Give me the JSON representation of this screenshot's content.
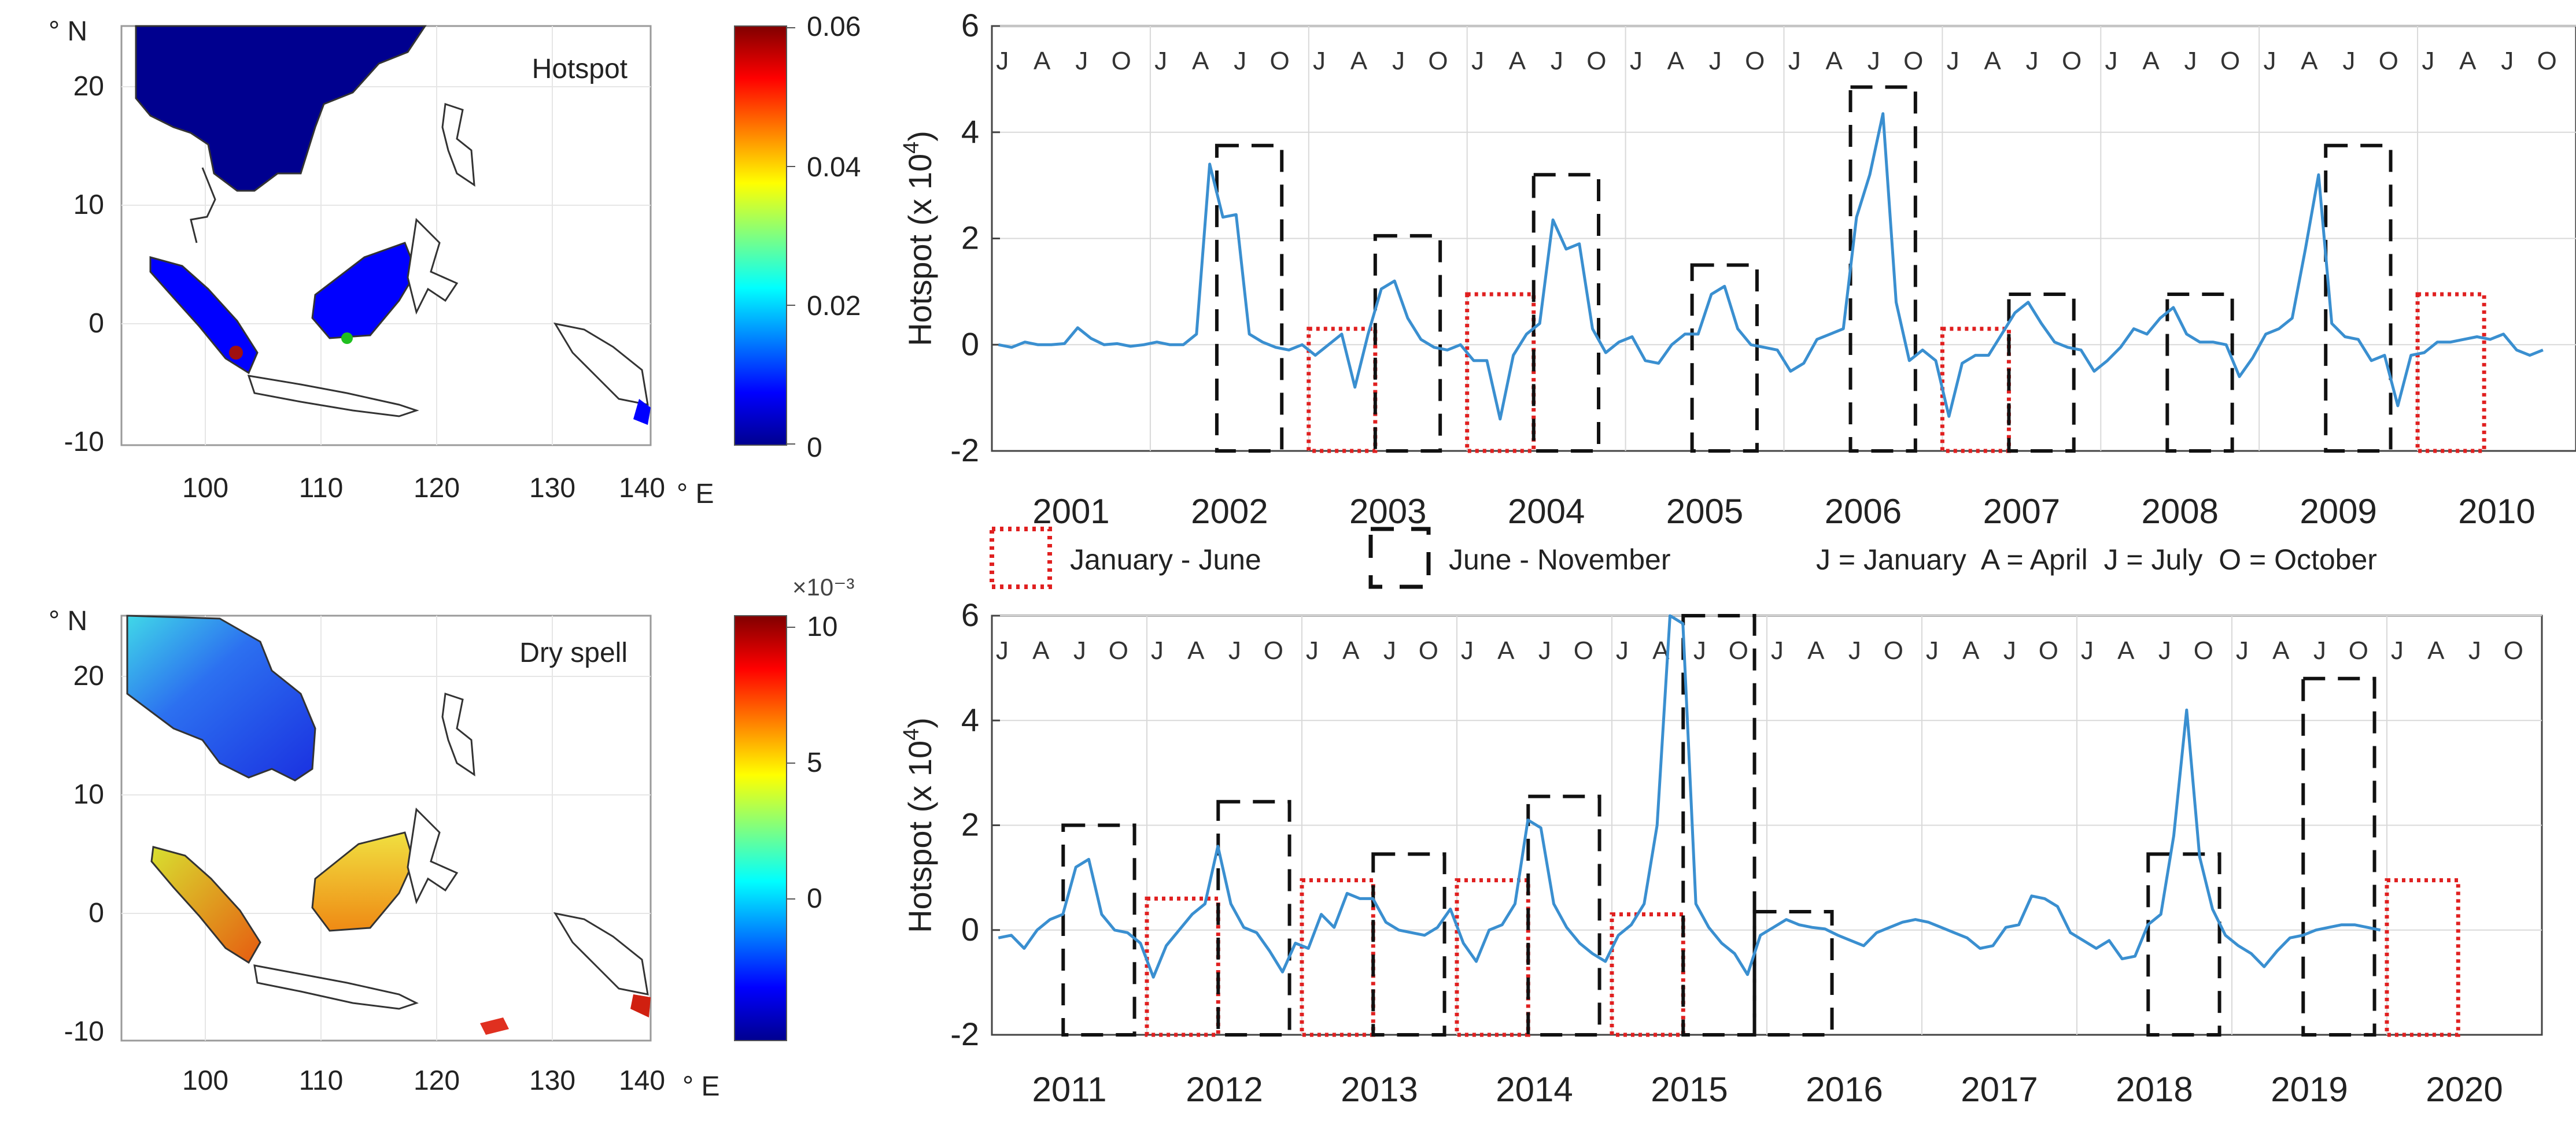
{
  "colors": {
    "series_line": "#3a8fd0",
    "jan_jun_box": "#e02020",
    "jun_nov_box": "#111111",
    "axis": "#444444",
    "grid": "#d9d9d9",
    "land": "#ffffff",
    "coast": "#333333"
  },
  "maps": [
    {
      "title": "Hotspot",
      "lat_unit": "° N",
      "lon_unit": "° E",
      "lat_ticks": [
        "20",
        "10",
        "0",
        "-10"
      ],
      "lon_ticks": [
        "100",
        "110",
        "120",
        "130",
        "140"
      ],
      "colorbar": {
        "exponent": "",
        "ticks": [
          "0.06",
          "0.04",
          "0.02",
          "0"
        ],
        "min": 0,
        "max": 0.06
      }
    },
    {
      "title": "Dry spell",
      "lat_unit": "° N",
      "lon_unit": "° E",
      "lat_ticks": [
        "20",
        "10",
        "0",
        "-10"
      ],
      "lon_ticks": [
        "100",
        "110",
        "120",
        "130",
        "140"
      ],
      "colorbar": {
        "exponent": "×10⁻³",
        "ticks": [
          "10",
          "5",
          "0"
        ],
        "min": -5,
        "max": 10.5
      }
    }
  ],
  "legend": {
    "red_box_label": "January - June",
    "black_box_label": "June - November",
    "month_key": "J = January  A = April  J = July  O = October"
  },
  "month_letters": [
    "J",
    "A",
    "J",
    "O"
  ],
  "chart_data": [
    {
      "type": "line",
      "ylabel_main": "Hotspot (x 10",
      "ylabel_exp": "4",
      "ylabel_end": ")",
      "ylim": [
        -2,
        6
      ],
      "yticks": [
        "6",
        "4",
        "2",
        "0",
        "-2"
      ],
      "years": [
        "2001",
        "2002",
        "2003",
        "2004",
        "2005",
        "2006",
        "2007",
        "2008",
        "2009",
        "2010"
      ],
      "values": [
        0,
        -0.05,
        0.05,
        0,
        0,
        0.02,
        0.32,
        0.12,
        0,
        0.02,
        -0.03,
        0,
        0.05,
        0,
        0,
        0.2,
        3.4,
        2.4,
        2.45,
        0.2,
        0.05,
        -0.05,
        -0.1,
        0,
        -0.2,
        0,
        0.2,
        -0.8,
        0.2,
        1.05,
        1.2,
        0.5,
        0.1,
        -0.05,
        -0.1,
        0,
        -0.3,
        -0.3,
        -1.4,
        -0.2,
        0.2,
        0.4,
        2.35,
        1.8,
        1.9,
        0.3,
        -0.15,
        0.05,
        0.15,
        -0.3,
        -0.35,
        0,
        0.2,
        0.2,
        0.95,
        1.1,
        0.3,
        0,
        -0.05,
        -0.1,
        -0.5,
        -0.35,
        0.1,
        0.2,
        0.3,
        2.4,
        3.2,
        4.35,
        0.8,
        -0.3,
        -0.1,
        -0.3,
        -1.35,
        -0.35,
        -0.2,
        -0.2,
        0.2,
        0.6,
        0.8,
        0.4,
        0.05,
        -0.05,
        -0.1,
        -0.5,
        -0.3,
        -0.05,
        0.3,
        0.2,
        0.5,
        0.7,
        0.2,
        0.05,
        0.05,
        0,
        -0.6,
        -0.25,
        0.2,
        0.3,
        0.5,
        1.8,
        3.2,
        0.4,
        0.15,
        0.1,
        -0.3,
        -0.2,
        -1.15,
        -0.2,
        -0.15,
        0.05,
        0.05,
        0.1,
        0.15,
        0.1,
        0.2,
        -0.1,
        -0.2,
        -0.1
      ],
      "jan_jun_boxes": [
        {
          "start": 2.0,
          "end": 2.42,
          "top": 0.3
        },
        {
          "start": 3.0,
          "end": 3.42,
          "top": 0.95
        },
        {
          "start": 6.0,
          "end": 6.42,
          "top": 0.3
        },
        {
          "start": 9.0,
          "end": 9.42,
          "top": 0.95
        }
      ],
      "jun_nov_boxes": [
        {
          "start": 1.42,
          "end": 1.83,
          "top": 3.75
        },
        {
          "start": 2.42,
          "end": 2.83,
          "top": 2.05
        },
        {
          "start": 3.42,
          "end": 3.83,
          "top": 3.2
        },
        {
          "start": 4.42,
          "end": 4.83,
          "top": 1.5
        },
        {
          "start": 5.42,
          "end": 5.83,
          "top": 4.85
        },
        {
          "start": 6.42,
          "end": 6.83,
          "top": 0.95
        },
        {
          "start": 7.42,
          "end": 7.83,
          "top": 0.95
        },
        {
          "start": 8.42,
          "end": 8.83,
          "top": 3.75
        }
      ]
    },
    {
      "type": "line",
      "ylabel_main": "Hotspot (x 10",
      "ylabel_exp": "4",
      "ylabel_end": ")",
      "ylim": [
        -2,
        6
      ],
      "yticks": [
        "6",
        "4",
        "2",
        "0",
        "-2"
      ],
      "years": [
        "2011",
        "2012",
        "2013",
        "2014",
        "2015",
        "2016",
        "2017",
        "2018",
        "2019",
        "2020"
      ],
      "values": [
        -0.15,
        -0.1,
        -0.35,
        0,
        0.2,
        0.3,
        1.2,
        1.35,
        0.3,
        0,
        -0.05,
        -0.25,
        -0.9,
        -0.3,
        0,
        0.3,
        0.5,
        1.6,
        0.5,
        0.05,
        -0.05,
        -0.4,
        -0.8,
        -0.25,
        -0.35,
        0.3,
        0.05,
        0.7,
        0.6,
        0.6,
        0.15,
        0,
        -0.05,
        -0.1,
        0.05,
        0.4,
        -0.25,
        -0.6,
        0,
        0.1,
        0.5,
        2.1,
        1.95,
        0.5,
        0.05,
        -0.25,
        -0.45,
        -0.6,
        -0.1,
        0.1,
        0.5,
        2.0,
        6.0,
        5.85,
        0.5,
        0.05,
        -0.25,
        -0.45,
        -0.85,
        -0.1,
        0.05,
        0.2,
        0.1,
        0.05,
        0.02,
        -0.1,
        -0.2,
        -0.3,
        -0.05,
        0.05,
        0.15,
        0.2,
        0.15,
        0.05,
        -0.05,
        -0.15,
        -0.35,
        -0.3,
        0.05,
        0.1,
        0.65,
        0.6,
        0.45,
        -0.05,
        -0.2,
        -0.35,
        -0.2,
        -0.55,
        -0.5,
        0.1,
        0.3,
        1.8,
        4.2,
        1.4,
        0.4,
        -0.1,
        -0.3,
        -0.45,
        -0.7,
        -0.4,
        -0.15,
        -0.1,
        0,
        0.05,
        0.1,
        0.1,
        0.05,
        0
      ],
      "jan_jun_boxes": [
        {
          "start": 1.0,
          "end": 1.46,
          "top": 0.6
        },
        {
          "start": 2.0,
          "end": 2.46,
          "top": 0.95
        },
        {
          "start": 3.0,
          "end": 3.46,
          "top": 0.95
        },
        {
          "start": 4.0,
          "end": 4.46,
          "top": 0.3
        },
        {
          "start": 9.0,
          "end": 9.46,
          "top": 0.95
        }
      ],
      "jun_nov_boxes": [
        {
          "start": 0.46,
          "end": 0.92,
          "top": 2.0
        },
        {
          "start": 1.46,
          "end": 1.92,
          "top": 2.45
        },
        {
          "start": 2.46,
          "end": 2.92,
          "top": 1.45
        },
        {
          "start": 3.46,
          "end": 3.92,
          "top": 2.55
        },
        {
          "start": 4.46,
          "end": 4.92,
          "top": 6.0
        },
        {
          "start": 4.92,
          "end": 5.42,
          "top": 0.35
        },
        {
          "start": 7.46,
          "end": 7.92,
          "top": 1.45
        },
        {
          "start": 8.46,
          "end": 8.92,
          "top": 4.8
        }
      ]
    }
  ]
}
